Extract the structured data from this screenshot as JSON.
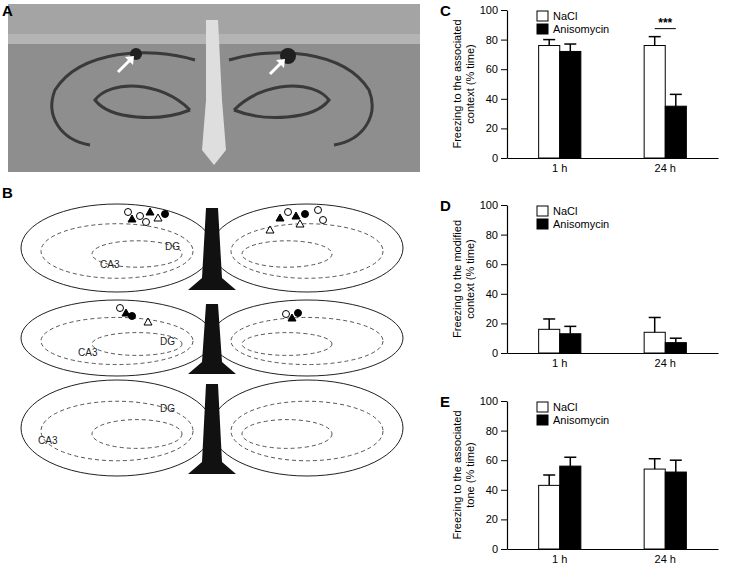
{
  "figure": {
    "panel_labels": [
      "A",
      "B"
    ],
    "section_labels": [
      [
        "CA3",
        "DG"
      ],
      [
        "CA3",
        "DG"
      ],
      [
        "DG",
        "CA3"
      ]
    ]
  },
  "chart_data": [
    {
      "type": "bar",
      "panel": "C",
      "y_label": [
        "Freezing to the associated",
        "context (% time)"
      ],
      "categories": [
        "1 h",
        "24 h"
      ],
      "series": [
        {
          "name": "NaCl",
          "color": "#ffffff",
          "values": [
            76,
            76
          ],
          "errors": [
            4,
            6
          ]
        },
        {
          "name": "Anisomycin",
          "color": "#000000",
          "values": [
            72,
            35
          ],
          "errors": [
            5,
            8
          ]
        }
      ],
      "ylim": [
        0,
        100
      ],
      "yticks": [
        0,
        20,
        40,
        60,
        80,
        100
      ],
      "legend": "upper left",
      "annotations": [
        {
          "text": "***",
          "category": "24 h"
        }
      ]
    },
    {
      "type": "bar",
      "panel": "D",
      "y_label": [
        "Freezing to the  modified",
        "context (% time)"
      ],
      "categories": [
        "1 h",
        "24 h"
      ],
      "series": [
        {
          "name": "NaCl",
          "color": "#ffffff",
          "values": [
            16,
            14
          ],
          "errors": [
            7,
            10
          ]
        },
        {
          "name": "Anisomycin",
          "color": "#000000",
          "values": [
            13,
            7
          ],
          "errors": [
            5,
            3
          ]
        }
      ],
      "ylim": [
        0,
        100
      ],
      "yticks": [
        0,
        20,
        40,
        60,
        80,
        100
      ],
      "legend": "upper left"
    },
    {
      "type": "bar",
      "panel": "E",
      "y_label": [
        "Freezing to the associated",
        "tone (% time)"
      ],
      "categories": [
        "1 h",
        "24 h"
      ],
      "series": [
        {
          "name": "NaCl",
          "color": "#ffffff",
          "values": [
            43,
            54
          ],
          "errors": [
            7,
            7
          ]
        },
        {
          "name": "Anisomycin",
          "color": "#000000",
          "values": [
            56,
            52
          ],
          "errors": [
            6,
            8
          ]
        }
      ],
      "ylim": [
        0,
        100
      ],
      "yticks": [
        0,
        20,
        40,
        60,
        80,
        100
      ],
      "legend": "upper left"
    }
  ]
}
